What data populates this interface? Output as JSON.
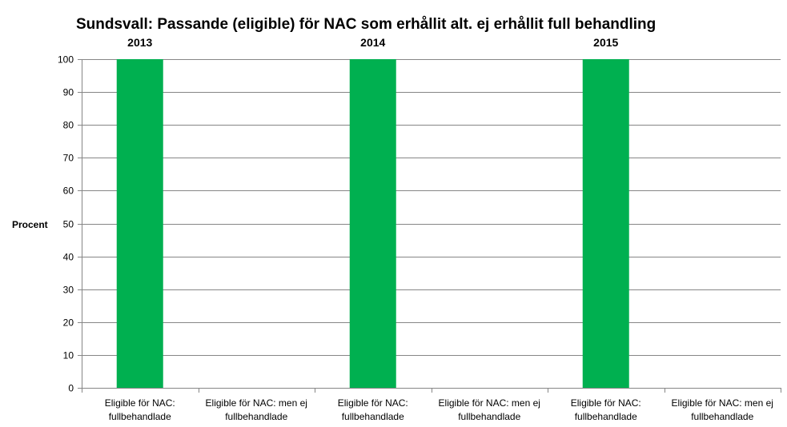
{
  "chart_data": {
    "type": "bar",
    "title": "Sundsvall: Passande (eligible) för NAC som erhållit alt. ej erhållit full behandling",
    "ylabel": "Procent",
    "xlabel": "",
    "ylim": [
      0,
      100
    ],
    "yticks": [
      0,
      10,
      20,
      30,
      40,
      50,
      60,
      70,
      80,
      90,
      100
    ],
    "grid": true,
    "groups": [
      "2013",
      "2014",
      "2015"
    ],
    "categories": [
      [
        "Eligible för NAC:",
        "fullbehandlade"
      ],
      [
        "Eligible för NAC: men ej",
        "fullbehandlade"
      ],
      [
        "Eligible för NAC:",
        "fullbehandlade"
      ],
      [
        "Eligible för NAC: men ej",
        "fullbehandlade"
      ],
      [
        "Eligible för NAC:",
        "fullbehandlade"
      ],
      [
        "Eligible för NAC: men ej",
        "fullbehandlade"
      ]
    ],
    "values": [
      100,
      0,
      100,
      0,
      100,
      0
    ],
    "bar_color": "#00B050"
  }
}
